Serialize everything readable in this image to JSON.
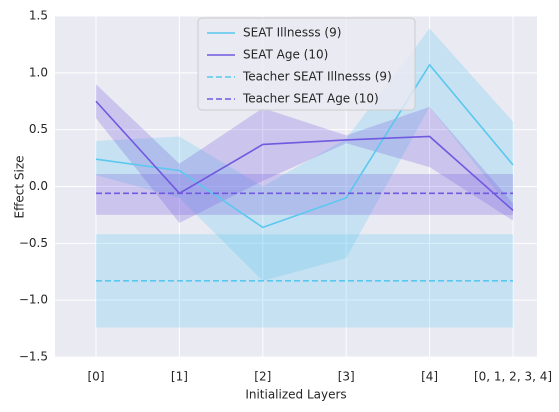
{
  "chart_data": {
    "type": "line",
    "x_label": "Initialized Layers",
    "y_label": "Effect Size",
    "categories": [
      "[0]",
      "[1]",
      "[2]",
      "[3]",
      "[4]",
      "[0, 1, 2, 3, 4]"
    ],
    "series": [
      {
        "name": "SEAT Illnesss (9)",
        "color": "#5bc8f0",
        "dash": false,
        "values": [
          0.24,
          0.14,
          -0.36,
          -0.1,
          1.07,
          0.19
        ],
        "upper": [
          0.4,
          0.44,
          0.0,
          0.42,
          1.39,
          0.57
        ],
        "lower": [
          0.1,
          -0.1,
          -0.83,
          -0.63,
          0.7,
          -0.22
        ]
      },
      {
        "name": "SEAT Age (10)",
        "color": "#7159e0",
        "dash": false,
        "values": [
          0.75,
          -0.06,
          0.37,
          0.41,
          0.44,
          -0.21
        ],
        "upper": [
          0.9,
          0.2,
          0.69,
          0.45,
          0.7,
          -0.15
        ],
        "lower": [
          0.6,
          -0.32,
          0.05,
          0.38,
          0.17,
          -0.3
        ]
      },
      {
        "name": "Teacher SEAT Illnesss (9)",
        "color": "#5bc8f0",
        "dash": true,
        "values": [
          -0.83,
          -0.83,
          -0.83,
          -0.83,
          -0.83,
          -0.83
        ],
        "upper": [
          -0.42,
          -0.42,
          -0.42,
          -0.42,
          -0.42,
          -0.42
        ],
        "lower": [
          -1.24,
          -1.24,
          -1.24,
          -1.24,
          -1.24,
          -1.24
        ]
      },
      {
        "name": "Teacher SEAT Age (10)",
        "color": "#7159e0",
        "dash": true,
        "values": [
          -0.06,
          -0.06,
          -0.06,
          -0.06,
          -0.06,
          -0.06
        ],
        "upper": [
          0.11,
          0.11,
          0.11,
          0.11,
          0.11,
          0.11
        ],
        "lower": [
          -0.25,
          -0.25,
          -0.25,
          -0.25,
          -0.25,
          -0.25
        ]
      }
    ],
    "ylim": [
      -1.5,
      1.5
    ],
    "yticks": [
      {
        "value": -1.5,
        "label": "−1.5"
      },
      {
        "value": -1.0,
        "label": "−1.0"
      },
      {
        "value": -0.5,
        "label": "−0.5"
      },
      {
        "value": 0,
        "label": "0.0"
      },
      {
        "value": 0.5,
        "label": "0.5"
      },
      {
        "value": 1.0,
        "label": "1.0"
      },
      {
        "value": 1.5,
        "label": "1.5"
      }
    ],
    "grid": true,
    "legend": "upper center"
  }
}
